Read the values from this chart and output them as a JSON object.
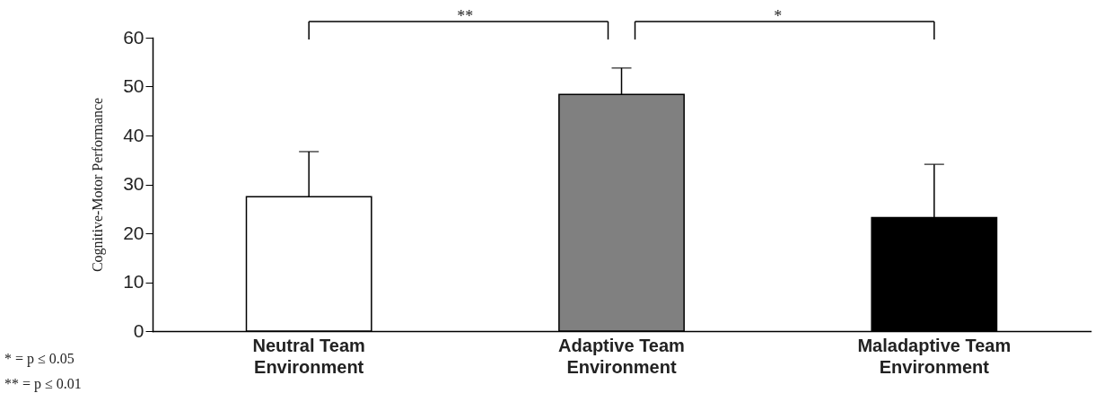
{
  "chart_data": {
    "type": "bar",
    "ylabel": "Cognitive-Motor Performance",
    "categories": [
      "Neutral Team Environment",
      "Adaptive Team Environment",
      "Maladaptive Team Environment"
    ],
    "values": [
      27.5,
      48.4,
      23.2
    ],
    "errors": [
      9.2,
      5.4,
      10.9
    ],
    "colors": [
      "#ffffff",
      "#808080",
      "#000000"
    ],
    "ylim": [
      0,
      60
    ],
    "yticks": [
      0,
      10,
      20,
      30,
      40,
      50,
      60
    ],
    "grid": false,
    "annotations": [
      "**",
      "*",
      "* =   p ≤ 0.05",
      "** = p ≤ 0.01"
    ]
  }
}
